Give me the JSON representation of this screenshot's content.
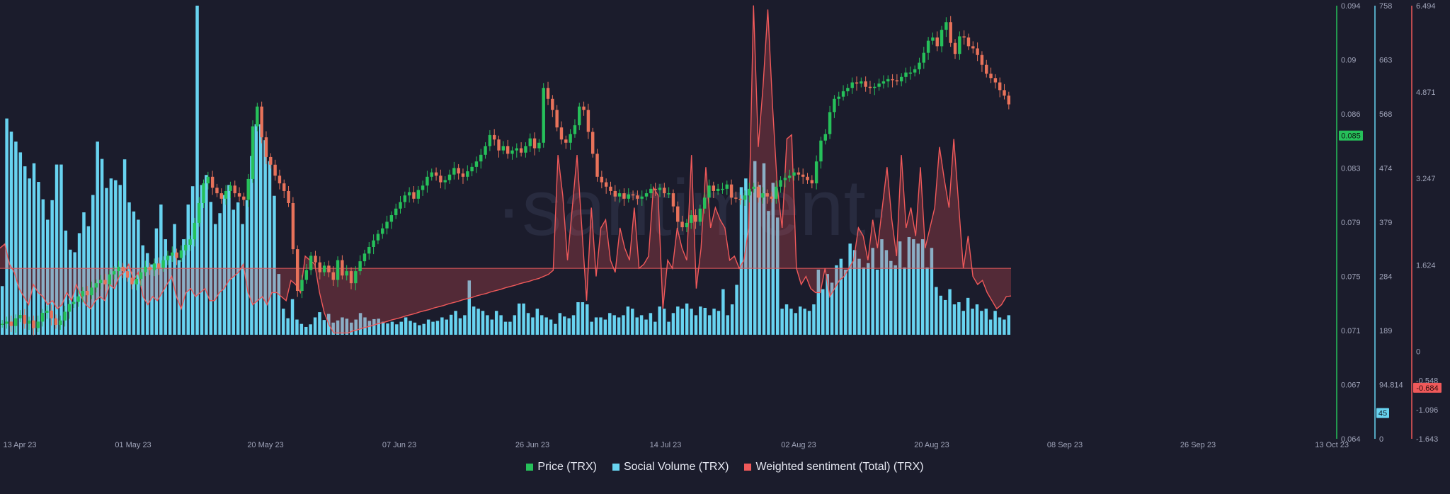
{
  "watermark": "·santiment·",
  "legend": [
    {
      "label": "Price (TRX)",
      "color": "#26c05a"
    },
    {
      "label": "Social Volume (TRX)",
      "color": "#68d3f0"
    },
    {
      "label": "Weighted sentiment (Total) (TRX)",
      "color": "#f0595a"
    }
  ],
  "chart_data": {
    "type": "bar",
    "x_axis": {
      "labels": [
        "13 Apr 23",
        "01 May 23",
        "20 May 23",
        "07 Jun 23",
        "26 Jun 23",
        "14 Jul 23",
        "02 Aug 23",
        "20 Aug 23",
        "08 Sep 23",
        "26 Sep 23",
        "13 Oct 23"
      ],
      "range": [
        "2023-04-13",
        "2023-10-13"
      ]
    },
    "axes": {
      "price": {
        "ticks": [
          "0.094",
          "0.09",
          "0.086",
          "0.083",
          "0.079",
          "0.075",
          "0.071",
          "0.067",
          "0.064"
        ],
        "range": [
          0.064,
          0.094
        ],
        "color": "#26c05a"
      },
      "social_volume": {
        "ticks": [
          "758",
          "663",
          "568",
          "474",
          "379",
          "284",
          "189",
          "94.814",
          "0"
        ],
        "range": [
          0,
          758
        ],
        "color": "#68d3f0"
      },
      "sentiment": {
        "ticks": [
          "6.494",
          "4.871",
          "3.247",
          "1.624",
          "0",
          "-0.548",
          "-1.096",
          "-1.643"
        ],
        "range": [
          -1.643,
          6.494
        ],
        "color": "#f0595a"
      }
    },
    "current": {
      "price": "0.085",
      "social_volume": "45",
      "sentiment": "-0.684"
    },
    "series": [
      {
        "name": "Social Volume (TRX)",
        "type": "bar",
        "values": [
          112,
          498,
          468,
          445,
          420,
          388,
          360,
          395,
          352,
          312,
          265,
          310,
          392,
          392,
          240,
          196,
          190,
          234,
          282,
          250,
          322,
          445,
          405,
          338,
          360,
          356,
          345,
          404,
          305,
          284,
          265,
          206,
          188,
          162,
          245,
          300,
          220,
          182,
          255,
          172,
          220,
          300,
          342,
          758,
          345,
          368,
          306,
          255,
          280,
          322,
          345,
          288,
          305,
          255,
          310,
          412,
          485,
          485,
          448,
          400,
          320,
          140,
          60,
          38,
          82,
          35,
          25,
          18,
          24,
          40,
          52,
          34,
          48,
          28,
          33,
          40,
          37,
          28,
          35,
          50,
          40,
          32,
          36,
          37,
          30,
          26,
          30,
          24,
          30,
          40,
          32,
          28,
          22,
          25,
          35,
          30,
          32,
          40,
          35,
          46,
          55,
          38,
          45,
          125,
          65,
          60,
          55,
          45,
          35,
          55,
          45,
          30,
          30,
          45,
          72,
          72,
          50,
          40,
          60,
          45,
          40,
          35,
          25,
          50,
          42,
          38,
          45,
          75,
          75,
          70,
          30,
          40,
          40,
          35,
          50,
          45,
          40,
          45,
          65,
          60,
          40,
          45,
          35,
          50,
          30,
          65,
          60,
          30,
          50,
          65,
          60,
          72,
          60,
          45,
          65,
          62,
          45,
          60,
          55,
          105,
          45,
          70,
          115,
          340,
          360,
          330,
          400,
          345,
          395,
          285,
          350,
          270,
          60,
          70,
          60,
          50,
          65,
          60,
          55,
          70,
          150,
          105,
          140,
          120,
          160,
          175,
          150,
          210,
          195,
          175,
          155,
          165,
          200,
          150,
          220,
          195,
          170,
          160,
          215,
          155,
          225,
          220,
          210,
          220,
          155,
          200,
          110,
          90,
          80,
          105,
          70,
          75,
          55,
          85,
          60,
          70,
          55,
          60,
          35,
          55,
          40,
          35,
          45
        ]
      },
      {
        "name": "Weighted sentiment (Total) (TRX)",
        "type": "area",
        "values": [
          0.5,
          0.6,
          0.1,
          -0.1,
          -0.5,
          -0.7,
          -0.9,
          -0.4,
          -0.6,
          -0.7,
          -0.9,
          -0.8,
          -1.0,
          -0.9,
          -0.6,
          -0.8,
          -0.4,
          -0.7,
          -0.9,
          -1.0,
          -0.8,
          -0.7,
          -0.8,
          -0.4,
          -0.5,
          -0.2,
          -0.1,
          0.1,
          -0.3,
          -0.1,
          -0.7,
          -0.9,
          -0.7,
          -0.8,
          -0.6,
          -0.4,
          -0.2,
          -0.7,
          -1.0,
          -0.6,
          -0.5,
          -0.7,
          -0.6,
          -0.5,
          -0.8,
          -0.8,
          -0.6,
          -0.5,
          -0.3,
          -0.2,
          -0.1,
          0.1,
          -0.6,
          -0.9,
          -0.8,
          -0.7,
          -0.9,
          -0.6,
          -0.6,
          -0.7,
          -0.8,
          -0.3,
          -0.4,
          -0.6,
          0.3,
          0.2,
          0.1,
          -0.6,
          -1.1,
          -1.4,
          -1.6,
          -1.6,
          -1.6,
          -1.6,
          -1.55,
          -1.52,
          -1.48,
          -1.45,
          -1.42,
          -1.38,
          -1.35,
          -1.32,
          -1.28,
          -1.25,
          -1.22,
          -1.18,
          -1.15,
          -1.12,
          -1.08,
          -1.05,
          -1.02,
          -0.98,
          -0.95,
          -0.92,
          -0.88,
          -0.85,
          -0.82,
          -0.78,
          -0.75,
          -0.72,
          -0.68,
          -0.65,
          -0.62,
          -0.58,
          -0.55,
          -0.52,
          -0.48,
          -0.45,
          -0.42,
          -0.38,
          -0.35,
          -0.32,
          -0.28,
          -0.25,
          -0.2,
          -0.15,
          -0.05,
          2.8,
          1.8,
          0.2,
          1.5,
          2.8,
          1.0,
          -0.8,
          1.5,
          -0.2,
          1.0,
          1.2,
          0.2,
          -0.1,
          1.0,
          0.5,
          0.2,
          1.5,
          0.0,
          0.1,
          0.3,
          2.0,
          1.8,
          -1.0,
          0.2,
          0.0,
          1.0,
          0.5,
          0.2,
          2.8,
          -0.5,
          0.5,
          2.5,
          1.0,
          1.5,
          1.2,
          1.0,
          0.2,
          0.3,
          0.0,
          0.2,
          1.0,
          6.5,
          3.0,
          4.5,
          6.4,
          4.0,
          2.0,
          1.0,
          3.2,
          3.3,
          0.0,
          -0.4,
          -0.2,
          -0.5,
          -0.6,
          -0.6,
          0.0,
          -0.7,
          -0.5,
          -0.3,
          -0.2,
          0.0,
          0.2,
          1.0,
          0.8,
          0.2,
          1.2,
          0.5,
          1.5,
          2.5,
          1.2,
          0.3,
          2.8,
          1.0,
          1.5,
          0.8,
          2.5,
          0.5,
          1.0,
          1.5,
          3.0,
          2.2,
          1.5,
          3.2,
          1.6,
          0.0,
          0.8,
          -0.2,
          -0.4,
          -0.3,
          -0.6,
          -0.8,
          -1.0,
          -0.9,
          -0.7,
          -0.684
        ]
      },
      {
        "name": "Price (TRX)",
        "type": "candlestick",
        "values": [
          0.065,
          0.0652,
          0.0648,
          0.0655,
          0.0658,
          0.065,
          0.0653,
          0.0646,
          0.0652,
          0.066,
          0.0662,
          0.0655,
          0.0649,
          0.0653,
          0.0661,
          0.0668,
          0.067,
          0.0675,
          0.068,
          0.0676,
          0.0683,
          0.0687,
          0.069,
          0.0686,
          0.0695,
          0.0698,
          0.0702,
          0.0698,
          0.0692,
          0.0686,
          0.0691,
          0.0697,
          0.0702,
          0.0699,
          0.0705,
          0.0701,
          0.0708,
          0.0712,
          0.0715,
          0.071,
          0.0717,
          0.0722,
          0.0727,
          0.0742,
          0.076,
          0.0778,
          0.0784,
          0.0774,
          0.0769,
          0.0764,
          0.0771,
          0.0776,
          0.0769,
          0.0766,
          0.0763,
          0.0782,
          0.083,
          0.0848,
          0.082,
          0.0802,
          0.0795,
          0.0785,
          0.0778,
          0.0771,
          0.076,
          0.0718,
          0.068,
          0.069,
          0.0699,
          0.0712,
          0.0706,
          0.0697,
          0.0703,
          0.0697,
          0.069,
          0.0708,
          0.0694,
          0.0698,
          0.0687,
          0.0698,
          0.0707,
          0.0714,
          0.072,
          0.0726,
          0.0732,
          0.0737,
          0.0743,
          0.0749,
          0.0755,
          0.0761,
          0.0767,
          0.077,
          0.0764,
          0.0772,
          0.0776,
          0.0784,
          0.0788,
          0.0785,
          0.0779,
          0.0781,
          0.0786,
          0.0792,
          0.0787,
          0.0784,
          0.0789,
          0.0793,
          0.0798,
          0.0804,
          0.0812,
          0.0822,
          0.0818,
          0.0808,
          0.0812,
          0.0805,
          0.0808,
          0.081,
          0.0806,
          0.0812,
          0.0819,
          0.081,
          0.0815,
          0.0865,
          0.0855,
          0.0845,
          0.0829,
          0.0818,
          0.0815,
          0.0823,
          0.0831,
          0.0848,
          0.0845,
          0.0825,
          0.0805,
          0.0784,
          0.0779,
          0.0775,
          0.0771,
          0.0766,
          0.0769,
          0.0764,
          0.0768,
          0.0767,
          0.0764,
          0.0766,
          0.0769,
          0.0773,
          0.0772,
          0.0774,
          0.0769,
          0.0769,
          0.0757,
          0.0743,
          0.0738,
          0.0742,
          0.0749,
          0.0743,
          0.0755,
          0.0765,
          0.0776,
          0.0771,
          0.0773,
          0.0773,
          0.0777,
          0.0765,
          0.0764,
          0.0763,
          0.0767,
          0.0773,
          0.0775,
          0.0765,
          0.0769,
          0.0766,
          0.0764,
          0.0775,
          0.0781,
          0.0783,
          0.0785,
          0.0788,
          0.0786,
          0.0784,
          0.0781,
          0.0778,
          0.0798,
          0.0817,
          0.0823,
          0.0843,
          0.0855,
          0.0857,
          0.0862,
          0.0865,
          0.087,
          0.0869,
          0.0871,
          0.0866,
          0.0865,
          0.0866,
          0.0869,
          0.0871,
          0.0873,
          0.0872,
          0.0871,
          0.0875,
          0.0879,
          0.0879,
          0.0882,
          0.0888,
          0.0897,
          0.0908,
          0.0911,
          0.0903,
          0.0918,
          0.0925,
          0.0906,
          0.0896,
          0.0912,
          0.0911,
          0.0903,
          0.0901,
          0.0895,
          0.0886,
          0.0878,
          0.0874,
          0.087,
          0.0863,
          0.0858,
          0.085
        ]
      }
    ]
  }
}
